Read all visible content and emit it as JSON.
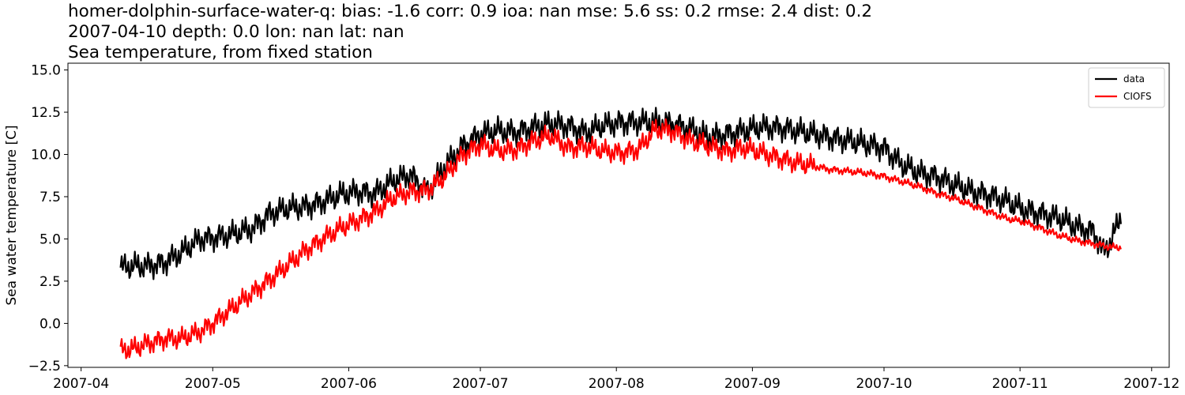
{
  "title": {
    "line1": "homer-dolphin-surface-water-q: bias: -1.6  corr: 0.9  ioa: nan  mse: 5.6  ss: 0.2  rmse: 2.4  dist: 0.2",
    "line2": "2007-04-10 depth: 0.0 lon: nan lat: nan",
    "line3": "Sea temperature, from fixed station"
  },
  "chart_data": {
    "type": "line",
    "ylabel": "Sea water temperature [C]",
    "xlabel": "",
    "xlim": [
      "2007-03-29",
      "2007-12-05"
    ],
    "ylim": [
      -2.6,
      15.4
    ],
    "x_ticks": [
      "2007-04",
      "2007-05",
      "2007-06",
      "2007-07",
      "2007-08",
      "2007-09",
      "2007-10",
      "2007-11",
      "2007-12"
    ],
    "y_ticks": [
      -2.5,
      0.0,
      2.5,
      5.0,
      7.5,
      10.0,
      12.5,
      15.0
    ],
    "y_tick_labels": [
      "−2.5",
      "0.0",
      "2.5",
      "5.0",
      "7.5",
      "10.0",
      "12.5",
      "15.0"
    ],
    "grid": false,
    "legend_position": "top-right",
    "series": [
      {
        "name": "data",
        "color": "#000000",
        "x": [
          "2007-04-10",
          "2007-04-13",
          "2007-04-16",
          "2007-04-20",
          "2007-04-24",
          "2007-04-28",
          "2007-05-02",
          "2007-05-06",
          "2007-05-10",
          "2007-05-14",
          "2007-05-18",
          "2007-05-22",
          "2007-05-26",
          "2007-05-30",
          "2007-06-03",
          "2007-06-07",
          "2007-06-11",
          "2007-06-15",
          "2007-06-19",
          "2007-06-23",
          "2007-06-27",
          "2007-07-01",
          "2007-07-05",
          "2007-07-09",
          "2007-07-13",
          "2007-07-17",
          "2007-07-21",
          "2007-07-25",
          "2007-07-29",
          "2007-08-02",
          "2007-08-06",
          "2007-08-10",
          "2007-08-14",
          "2007-08-18",
          "2007-08-22",
          "2007-08-26",
          "2007-08-30",
          "2007-09-03",
          "2007-09-07",
          "2007-09-11",
          "2007-09-15",
          "2007-09-19",
          "2007-09-23",
          "2007-09-27",
          "2007-10-01",
          "2007-10-05",
          "2007-10-09",
          "2007-10-13",
          "2007-10-17",
          "2007-10-21",
          "2007-10-25",
          "2007-10-29",
          "2007-11-02",
          "2007-11-06",
          "2007-11-10",
          "2007-11-14",
          "2007-11-18",
          "2007-11-20",
          "2007-11-22",
          "2007-11-24"
        ],
        "y": [
          3.3,
          3.4,
          3.4,
          3.6,
          4.2,
          5.0,
          5.1,
          5.3,
          5.6,
          6.5,
          6.8,
          6.9,
          7.2,
          7.6,
          7.8,
          7.7,
          8.4,
          8.8,
          7.8,
          9.3,
          10.5,
          11.2,
          11.4,
          11.3,
          11.6,
          11.8,
          11.7,
          11.3,
          11.7,
          11.9,
          11.9,
          11.9,
          11.8,
          11.5,
          11.0,
          11.2,
          11.4,
          11.6,
          11.6,
          11.4,
          11.2,
          11.0,
          10.8,
          10.6,
          10.4,
          9.4,
          8.9,
          8.7,
          8.2,
          7.8,
          7.6,
          7.2,
          6.7,
          6.5,
          6.2,
          5.7,
          5.4,
          4.2,
          5.0,
          6.4
        ]
      },
      {
        "name": "CIOFS",
        "color": "#ff0000",
        "x": [
          "2007-04-10",
          "2007-04-13",
          "2007-04-16",
          "2007-04-20",
          "2007-04-24",
          "2007-04-28",
          "2007-05-02",
          "2007-05-06",
          "2007-05-10",
          "2007-05-14",
          "2007-05-18",
          "2007-05-22",
          "2007-05-26",
          "2007-05-30",
          "2007-06-03",
          "2007-06-07",
          "2007-06-11",
          "2007-06-15",
          "2007-06-19",
          "2007-06-23",
          "2007-06-27",
          "2007-07-01",
          "2007-07-05",
          "2007-07-09",
          "2007-07-13",
          "2007-07-17",
          "2007-07-21",
          "2007-07-25",
          "2007-07-29",
          "2007-08-02",
          "2007-08-06",
          "2007-08-10",
          "2007-08-14",
          "2007-08-18",
          "2007-08-22",
          "2007-08-26",
          "2007-08-30",
          "2007-09-03",
          "2007-09-07",
          "2007-09-11",
          "2007-09-15",
          "2007-09-19",
          "2007-09-23",
          "2007-09-27",
          "2007-10-01",
          "2007-10-05",
          "2007-10-09",
          "2007-10-13",
          "2007-10-17",
          "2007-10-21",
          "2007-10-25",
          "2007-10-29",
          "2007-11-02",
          "2007-11-06",
          "2007-11-10",
          "2007-11-14",
          "2007-11-18",
          "2007-11-20",
          "2007-11-22",
          "2007-11-24"
        ],
        "y": [
          -1.6,
          -1.5,
          -1.2,
          -0.9,
          -0.9,
          -0.5,
          0.2,
          1.0,
          1.8,
          2.6,
          3.4,
          4.3,
          5.0,
          5.6,
          6.1,
          6.6,
          7.4,
          7.8,
          7.9,
          8.7,
          10.0,
          10.6,
          10.2,
          10.3,
          10.8,
          11.1,
          10.4,
          10.5,
          10.2,
          10.1,
          10.3,
          11.5,
          11.4,
          10.8,
          10.5,
          10.2,
          10.4,
          10.1,
          9.8,
          9.5,
          9.3,
          9.1,
          9.0,
          8.9,
          8.7,
          8.4,
          8.1,
          7.7,
          7.4,
          7.0,
          6.6,
          6.2,
          6.0,
          5.6,
          5.2,
          4.9,
          4.7,
          4.6,
          4.5,
          4.5
        ]
      }
    ]
  }
}
